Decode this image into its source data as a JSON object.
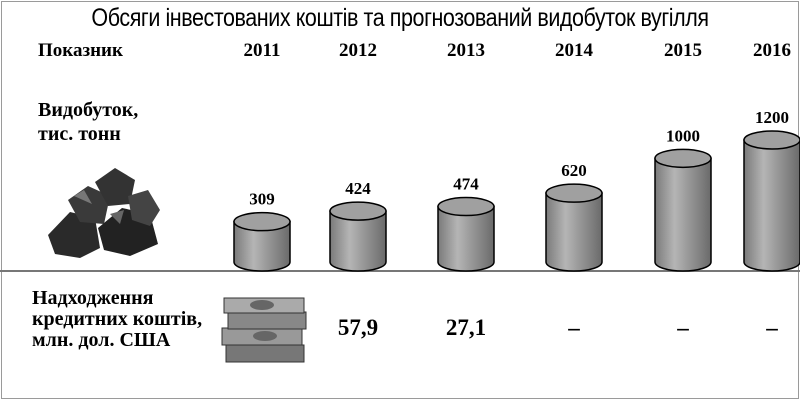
{
  "chart_data": {
    "type": "cylinder",
    "title": "Обсяги інвестованих коштів та прогнозований видобуток вугілля",
    "header_label": "Показник",
    "categories": [
      "2011",
      "2012",
      "2013",
      "2014",
      "2015",
      "2016"
    ],
    "series": [
      {
        "name": "Видобуток, тис. тонн",
        "color": "#a0a0a0",
        "values": [
          309,
          424,
          474,
          620,
          1000,
          1200
        ]
      }
    ],
    "credit_row": {
      "name": "Надходження кредитних коштів, млн. дол. США",
      "values": [
        null,
        57.9,
        27.1,
        null,
        null,
        null
      ],
      "value_labels": [
        null,
        "57,9",
        "27,1",
        "–",
        "–",
        "–"
      ]
    }
  }
}
